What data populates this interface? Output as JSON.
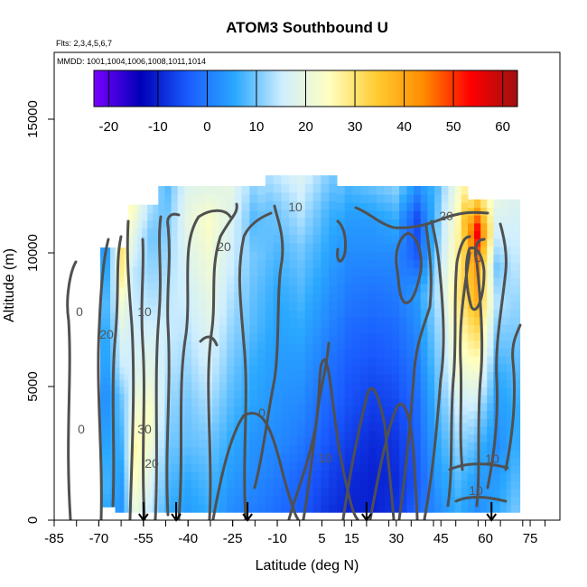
{
  "chart_data": {
    "type": "heatmap",
    "title": "ATOM3 Southbound U",
    "flights_note": "Flts: 2,3,4,5,6,7",
    "dates_note": "MMDD: 1001,1004,1006,1008,1011,1014",
    "xlabel": "Latitude (deg N)",
    "ylabel": "Altitude (m)",
    "xlim": [
      -85,
      85
    ],
    "ylim": [
      0,
      17500
    ],
    "x_ticks": [
      -85,
      -70,
      -55,
      -40,
      -25,
      -10,
      5,
      15,
      30,
      45,
      60,
      75
    ],
    "y_ticks": [
      0,
      5000,
      10000,
      15000
    ],
    "colorbar": {
      "range": [
        -23,
        63
      ],
      "ticks": [
        -20,
        -10,
        0,
        10,
        20,
        30,
        40,
        50,
        60
      ],
      "colors": [
        "#7a00ff",
        "#0000b8",
        "#1a5cff",
        "#2aa8ff",
        "#cfeeff",
        "#ffffc0",
        "#ffcc33",
        "#ff8c00",
        "#ff0000",
        "#a01010"
      ]
    },
    "contour_levels": [
      0,
      10,
      20,
      30
    ],
    "contour_labels": [
      "10",
      "20",
      "20",
      "0",
      "0",
      "10",
      "20",
      "0",
      "10",
      "10",
      "30",
      "20",
      "0",
      "10"
    ],
    "profile_latitudes": [
      -55,
      -44,
      -20,
      20,
      62
    ],
    "columns": [
      {
        "lat": -67,
        "u": [
          5,
          7,
          6,
          4,
          3,
          5,
          6,
          8,
          6,
          4
        ]
      },
      {
        "lat": -62,
        "u": [
          3,
          4,
          6,
          8,
          10,
          15,
          18,
          22,
          28,
          30
        ]
      },
      {
        "lat": -58,
        "u": [
          20,
          24,
          26,
          22,
          18,
          16,
          15,
          14,
          18,
          24
        ]
      },
      {
        "lat": -53,
        "u": [
          14,
          18,
          22,
          24,
          20,
          17,
          14,
          12,
          10,
          14
        ]
      },
      {
        "lat": -47,
        "u": [
          6,
          8,
          10,
          12,
          14,
          15,
          14,
          12,
          10,
          8
        ]
      },
      {
        "lat": -40,
        "u": [
          4,
          6,
          9,
          10,
          12,
          14,
          16,
          18,
          20,
          18
        ]
      },
      {
        "lat": -33,
        "u": [
          6,
          8,
          10,
          13,
          16,
          18,
          20,
          22,
          24,
          18
        ]
      },
      {
        "lat": -26,
        "u": [
          2,
          4,
          6,
          8,
          10,
          12,
          14,
          16,
          18,
          20
        ]
      },
      {
        "lat": -18,
        "u": [
          0,
          2,
          3,
          5,
          6,
          8,
          9,
          10,
          8,
          12
        ]
      },
      {
        "lat": -10,
        "u": [
          -2,
          0,
          2,
          3,
          4,
          5,
          6,
          8,
          10,
          15
        ]
      },
      {
        "lat": -2,
        "u": [
          -4,
          -3,
          0,
          2,
          4,
          6,
          8,
          10,
          14,
          18
        ]
      },
      {
        "lat": 6,
        "u": [
          -8,
          -6,
          -4,
          -2,
          0,
          2,
          4,
          6,
          8,
          12
        ]
      },
      {
        "lat": 14,
        "u": [
          -10,
          -9,
          -7,
          -5,
          -4,
          -2,
          0,
          2,
          4,
          8
        ]
      },
      {
        "lat": 22,
        "u": [
          -10,
          -10,
          -9,
          -7,
          -5,
          -3,
          -1,
          2,
          4,
          10
        ]
      },
      {
        "lat": 30,
        "u": [
          -8,
          -9,
          -8,
          -6,
          -4,
          -2,
          0,
          2,
          6,
          12
        ]
      },
      {
        "lat": 37,
        "u": [
          -2,
          -4,
          -3,
          -2,
          0,
          2,
          4,
          -4,
          -6,
          4
        ]
      },
      {
        "lat": 44,
        "u": [
          2,
          4,
          6,
          8,
          10,
          12,
          14,
          12,
          10,
          8
        ]
      },
      {
        "lat": 51,
        "u": [
          6,
          8,
          12,
          16,
          22,
          26,
          30,
          28,
          26,
          22
        ]
      },
      {
        "lat": 57,
        "u": [
          2,
          4,
          8,
          14,
          22,
          30,
          38,
          42,
          55,
          30
        ]
      },
      {
        "lat": 64,
        "u": [
          6,
          4,
          2,
          4,
          6,
          10,
          14,
          10,
          16,
          20
        ]
      },
      {
        "lat": 70,
        "u": [
          10,
          8,
          6,
          6,
          8,
          10,
          12,
          14,
          16,
          18
        ]
      }
    ]
  }
}
